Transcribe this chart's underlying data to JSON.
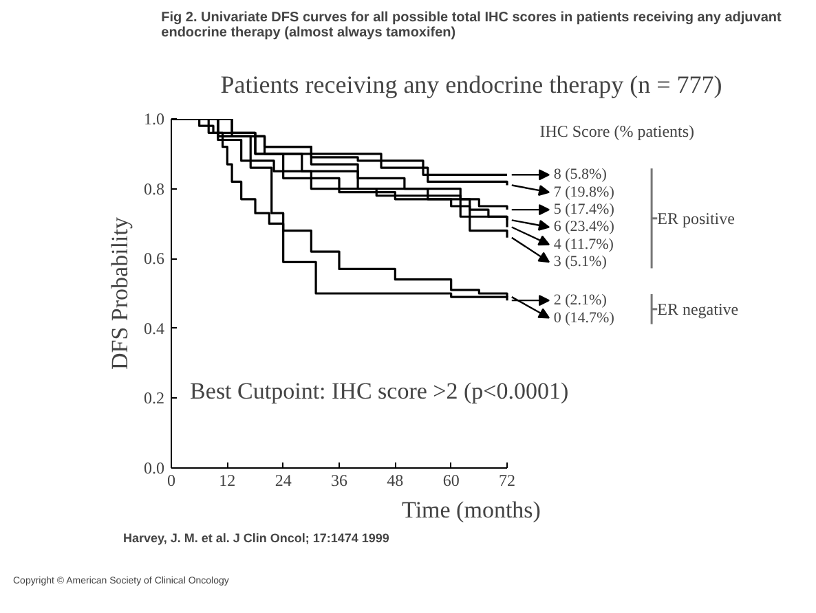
{
  "chart_data": {
    "type": "step",
    "title": "Fig 2. Univariate DFS curves for all possible total IHC scores in patients receiving any adjuvant endocrine therapy (almost always tamoxifen)",
    "subtitle": "Patients receiving any endocrine therapy (n = 777)",
    "xlabel": "Time (months)",
    "ylabel": "DFS Probability",
    "legend_title": "IHC Score (% patients)",
    "xlim": [
      0,
      72
    ],
    "ylim": [
      0,
      1.0
    ],
    "xticks": [
      0,
      12,
      24,
      36,
      48,
      60,
      72
    ],
    "yticks": [
      {
        "value": 0,
        "label": "0.0"
      },
      {
        "value": 0.2,
        "label": "0.2"
      },
      {
        "value": 0.4,
        "label": "0.4"
      },
      {
        "value": 0.6,
        "label": "0.6"
      },
      {
        "value": 0.8,
        "label": "0.8"
      },
      {
        "value": 1.0,
        "label": "1.0"
      }
    ],
    "grid": false,
    "legend": "right",
    "series": [
      {
        "name": "8 (5.8%)",
        "color": "#000000",
        "x": [
          0,
          13,
          20,
          30,
          40,
          54,
          72
        ],
        "values": [
          1,
          0.95,
          0.92,
          0.89,
          0.88,
          0.84,
          0.84
        ]
      },
      {
        "name": "7 (19.8%)",
        "color": "#000000",
        "x": [
          0,
          10,
          20,
          30,
          45,
          55,
          72
        ],
        "values": [
          1,
          0.95,
          0.92,
          0.9,
          0.86,
          0.82,
          0.81
        ]
      },
      {
        "name": "5 (17.4%)",
        "color": "#000000",
        "x": [
          0,
          10,
          20,
          30,
          40,
          50,
          62,
          66,
          72
        ],
        "values": [
          1,
          0.95,
          0.9,
          0.87,
          0.83,
          0.8,
          0.77,
          0.75,
          0.74
        ]
      },
      {
        "name": "6 (23.4%)",
        "color": "#000000",
        "x": [
          0,
          8,
          18,
          28,
          40,
          55,
          64,
          68,
          72
        ],
        "values": [
          1,
          0.96,
          0.9,
          0.85,
          0.8,
          0.77,
          0.74,
          0.72,
          0.71
        ]
      },
      {
        "name": "4 (11.7%)",
        "color": "#000000",
        "x": [
          0,
          10,
          15,
          22,
          30,
          44,
          50,
          62,
          72
        ],
        "values": [
          1,
          0.94,
          0.88,
          0.85,
          0.8,
          0.78,
          0.78,
          0.72,
          0.69
        ]
      },
      {
        "name": "3 (5.1%)",
        "color": "#000000",
        "x": [
          0,
          13,
          18,
          24,
          36,
          48,
          60,
          64,
          72
        ],
        "values": [
          1,
          0.96,
          0.9,
          0.83,
          0.79,
          0.77,
          0.75,
          0.68,
          0.66
        ]
      },
      {
        "name": "2 (2.1%)",
        "color": "#000000",
        "x": [
          0,
          10,
          17,
          21.5,
          24,
          31,
          60,
          72
        ],
        "values": [
          1,
          0.95,
          0.86,
          0.73,
          0.59,
          0.5,
          0.49,
          0.48
        ]
      },
      {
        "name": "0 (14.7%)",
        "color": "#000000",
        "x": [
          0,
          6,
          9,
          11,
          12,
          13,
          15,
          18,
          21,
          24,
          30,
          36,
          48,
          60,
          66,
          72
        ],
        "values": [
          1,
          0.98,
          0.96,
          0.92,
          0.87,
          0.82,
          0.77,
          0.73,
          0.7,
          0.68,
          0.62,
          0.57,
          0.54,
          0.51,
          0.5,
          0.49
        ]
      }
    ],
    "annotations": [
      "Best Cutpoint: IHC score >2 (p<0.0001)",
      "ER positive",
      "ER negative",
      "Harvey, J. M. et al. J Clin Oncol; 17:1474 1999",
      "Copyright © American Society of Clinical Oncology"
    ]
  }
}
